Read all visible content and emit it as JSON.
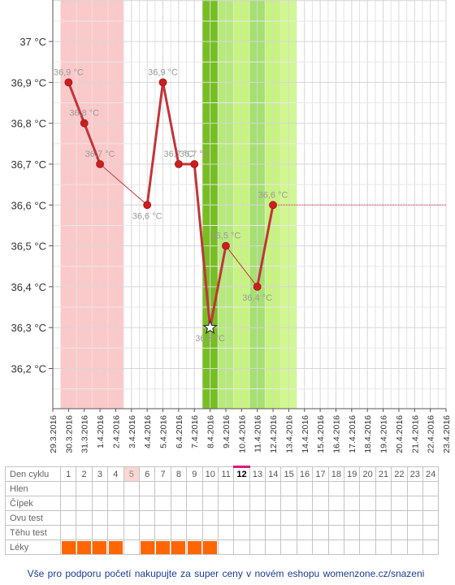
{
  "chart_data": {
    "type": "line",
    "ylabel_unit": "°C",
    "ylim": [
      36.1,
      37.1
    ],
    "y_ticks": [
      "36,2 °C",
      "36,3 °C",
      "36,4 °C",
      "36,5 °C",
      "36,6 °C",
      "36,7 °C",
      "36,8 °C",
      "36,9 °C",
      "37 °C"
    ],
    "x_dates": [
      "29.3.2016",
      "30.3.2016",
      "31.3.2016",
      "1.4.2016",
      "2.4.2016",
      "3.4.2016",
      "4.4.2016",
      "5.4.2016",
      "6.4.2016",
      "7.4.2016",
      "8.4.2016",
      "9.4.2016",
      "10.4.2016",
      "11.4.2016",
      "12.4.2016",
      "13.4.2016",
      "14.4.2016",
      "15.4.2016",
      "16.4.2016",
      "17.4.2016",
      "18.4.2016",
      "19.4.2016",
      "20.4.2016",
      "21.4.2016",
      "22.4.2016",
      "23.4.2016"
    ],
    "series": [
      {
        "points": [
          {
            "x": "30.3.2016",
            "y": 36.9,
            "label": "36,9 °C"
          },
          {
            "x": "31.3.2016",
            "y": 36.8,
            "label": "36,8 °C"
          },
          {
            "x": "1.4.2016",
            "y": 36.7,
            "label": "36,7 °C"
          },
          {
            "x": "4.4.2016",
            "y": 36.6,
            "label": "36,6 °C"
          },
          {
            "x": "5.4.2016",
            "y": 36.9,
            "label": "36,9 °C"
          },
          {
            "x": "6.4.2016",
            "y": 36.7,
            "label": "36,7 °C"
          },
          {
            "x": "7.4.2016",
            "y": 36.7,
            "label": "36,7 °C"
          },
          {
            "x": "8.4.2016",
            "y": 36.3,
            "label": "36,3 °C",
            "marker": "star"
          },
          {
            "x": "9.4.2016",
            "y": 36.5,
            "label": "36,5 °C"
          },
          {
            "x": "11.4.2016",
            "y": 36.4,
            "label": "36,4 °C"
          },
          {
            "x": "12.4.2016",
            "y": 36.6,
            "label": "36,6 °C"
          }
        ],
        "projection": {
          "from": "12.4.2016",
          "to": "23.4.2016",
          "y": 36.6
        }
      }
    ],
    "bands": [
      {
        "from": "29.3.2016",
        "to": "2.4.2016",
        "color": "#ffc8c8",
        "meaning": "menstruation"
      },
      {
        "from": "7.4.2016",
        "to": "8.4.2016",
        "color": "#78be22",
        "meaning": "ovulation"
      },
      {
        "from": "8.4.2016",
        "to": "9.4.2016",
        "color": "#b5ea7a",
        "meaning": "fertile"
      },
      {
        "from": "9.4.2016",
        "to": "10.4.2016",
        "color": "#c7f47d",
        "meaning": "fertile"
      },
      {
        "from": "10.4.2016",
        "to": "11.4.2016",
        "color": "#a5e070",
        "meaning": "fertile"
      },
      {
        "from": "11.4.2016",
        "to": "12.4.2016",
        "color": "#c7f47d",
        "meaning": "fertile"
      },
      {
        "from": "12.4.2016",
        "to": "13.4.2016",
        "color": "#d1f88e",
        "meaning": "fertile"
      }
    ],
    "line_color": "#c0353b",
    "marker_color": "#cc1e1e",
    "grid": true
  },
  "table": {
    "row_labels": [
      "Den cyklu",
      "Hlen",
      "Čípek",
      "Ovu test",
      "Těhu test",
      "Léky"
    ],
    "days": [
      "1",
      "2",
      "3",
      "4",
      "5",
      "6",
      "7",
      "8",
      "9",
      "10",
      "11",
      "12",
      "13",
      "14",
      "15",
      "16",
      "17",
      "18",
      "19",
      "20",
      "21",
      "22",
      "23",
      "24"
    ],
    "marked_day": "5",
    "current_day": "12",
    "medication_days": [
      "1",
      "2",
      "3",
      "4",
      "6",
      "7",
      "8",
      "9",
      "10"
    ],
    "colors": {
      "medication": "#ff6600",
      "current_day_marker": "#d81b7c",
      "marked_day_bg": "#fad7d2"
    }
  },
  "footer": {
    "text": "Vše pro podporu početí nakupujte za super ceny v novém eshopu womenzone.cz/snazeni"
  }
}
